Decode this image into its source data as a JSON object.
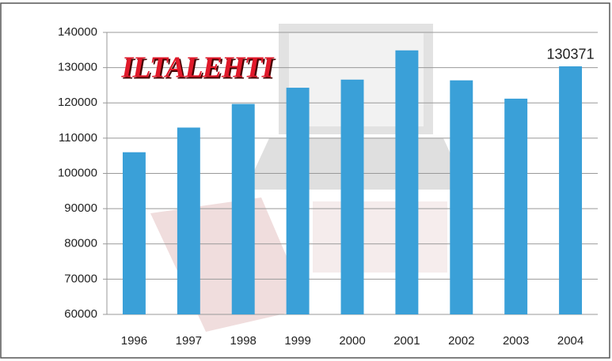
{
  "chart_data": {
    "type": "bar",
    "logo": "ILTALEHTI",
    "categories": [
      "1996",
      "1997",
      "1998",
      "1999",
      "2000",
      "2001",
      "2002",
      "2003",
      "2004"
    ],
    "values": [
      106000,
      113000,
      119700,
      124300,
      126600,
      134900,
      126400,
      121200,
      130371
    ],
    "value_labels": [
      null,
      null,
      null,
      null,
      null,
      null,
      null,
      null,
      "130371"
    ],
    "color": "#3aa0d8",
    "ylim": [
      60000,
      140000
    ],
    "yticks": [
      60000,
      70000,
      80000,
      90000,
      100000,
      110000,
      120000,
      130000,
      140000
    ],
    "grid": true
  }
}
